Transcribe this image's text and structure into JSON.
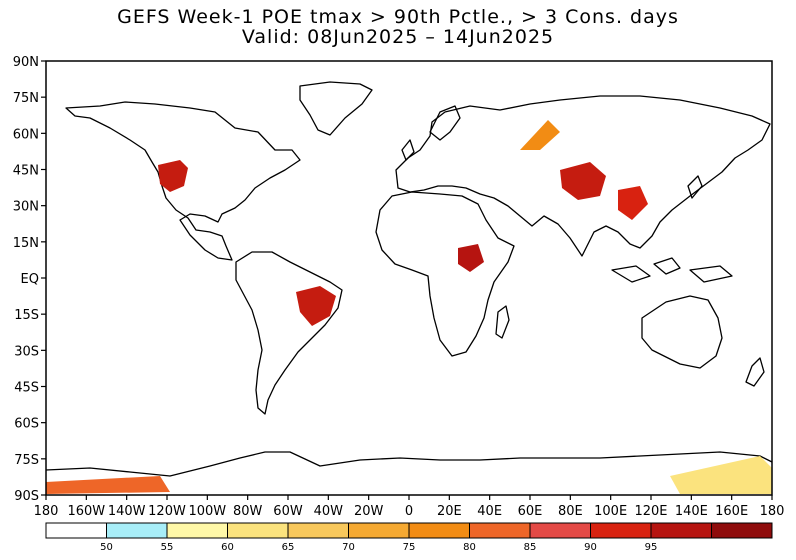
{
  "title": {
    "line1": "GEFS Week-1 POE tmax > 90th Pctle., > 3 Cons. days",
    "line2": "Valid: 08Jun2025 – 14Jun2025"
  },
  "map": {
    "lat_ticks": [
      "90N",
      "75N",
      "60N",
      "45N",
      "30N",
      "15N",
      "EQ",
      "15S",
      "30S",
      "45S",
      "60S",
      "75S",
      "90S"
    ],
    "lon_ticks": [
      "180",
      "160W",
      "140W",
      "120W",
      "100W",
      "80W",
      "60W",
      "40W",
      "20W",
      "0",
      "20E",
      "40E",
      "60E",
      "80E",
      "100E",
      "120E",
      "140E",
      "160E",
      "180"
    ]
  },
  "colorbar": {
    "colors": [
      "#ffffff",
      "#a8eef8",
      "#fff8a8",
      "#fbe37e",
      "#f8c85c",
      "#f5a932",
      "#f28c14",
      "#ee6628",
      "#e44a46",
      "#d82210",
      "#b61410",
      "#8f0c0c"
    ],
    "labels": [
      "50",
      "55",
      "60",
      "65",
      "70",
      "75",
      "80",
      "85",
      "90",
      "95"
    ]
  }
}
